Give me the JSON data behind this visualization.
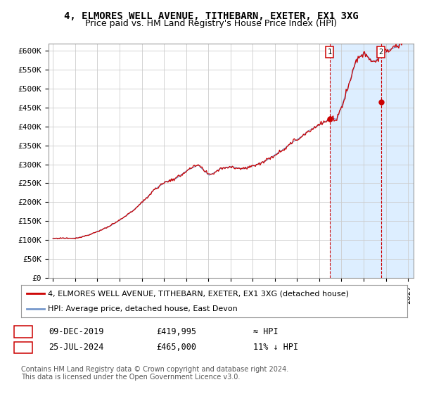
{
  "title": "4, ELMORES WELL AVENUE, TITHEBARN, EXETER, EX1 3XG",
  "subtitle": "Price paid vs. HM Land Registry's House Price Index (HPI)",
  "ylim": [
    0,
    620000
  ],
  "xlim_start": 1994.6,
  "xlim_end": 2027.5,
  "grid_color": "#cccccc",
  "plot_bg_normal": "#ffffff",
  "plot_bg_highlight": "#ddeeff",
  "hpi_color": "#7799cc",
  "price_color": "#cc0000",
  "marker1_date": 2019.94,
  "marker1_price": 419995,
  "marker2_date": 2024.56,
  "marker2_price": 465000,
  "highlight_start": 2019.94,
  "legend_label1": "4, ELMORES WELL AVENUE, TITHEBARN, EXETER, EX1 3XG (detached house)",
  "legend_label2": "HPI: Average price, detached house, East Devon",
  "table_row1": [
    "1",
    "09-DEC-2019",
    "£419,995",
    "≈ HPI"
  ],
  "table_row2": [
    "2",
    "25-JUL-2024",
    "£465,000",
    "11% ↓ HPI"
  ],
  "footer": "Contains HM Land Registry data © Crown copyright and database right 2024.\nThis data is licensed under the Open Government Licence v3.0.",
  "title_fontsize": 10,
  "subtitle_fontsize": 9,
  "tick_fontsize": 8,
  "legend_fontsize": 8,
  "table_fontsize": 8.5,
  "footer_fontsize": 7
}
